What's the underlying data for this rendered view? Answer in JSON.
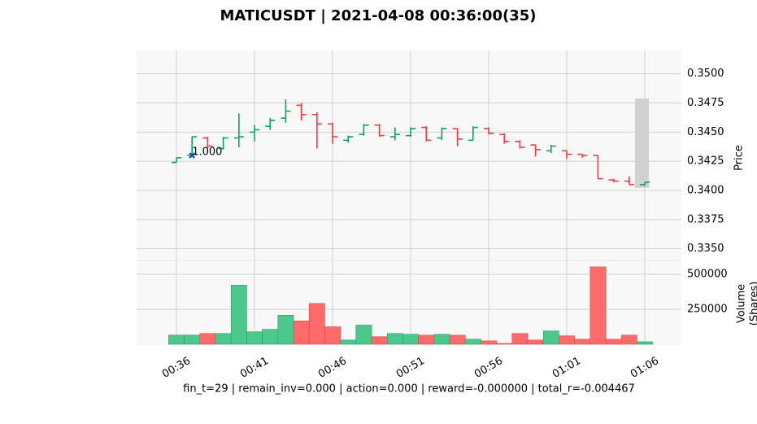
{
  "chart_data": {
    "type": "ohlc",
    "title": "MATICUSDT | 2021-04-08 00:36:00(35)",
    "footer": "fin_t=29 | remain_inv=0.000 | action=0.000 | reward=-0.000000 | total_r=-0.004467",
    "ylabel": "Price",
    "volume_ylabel": [
      "Volume",
      "(Shares)"
    ],
    "categories": [
      "00:36",
      null,
      null,
      null,
      null,
      "00:41",
      null,
      null,
      null,
      null,
      "00:46",
      null,
      null,
      null,
      null,
      "00:51",
      null,
      null,
      null,
      null,
      "00:56",
      null,
      null,
      null,
      null,
      "01:01",
      null,
      null,
      null,
      null,
      "01:06"
    ],
    "open": [
      0.3424,
      0.343,
      0.3445,
      0.3436,
      0.3445,
      0.345,
      0.3455,
      0.3462,
      0.3473,
      0.3465,
      0.3457,
      0.3443,
      0.3448,
      0.3456,
      0.3446,
      0.3447,
      0.3454,
      0.3445,
      0.3453,
      0.3443,
      0.3453,
      0.3448,
      0.3442,
      0.3439,
      0.3434,
      0.3434,
      0.3431,
      0.343,
      0.3409,
      0.3408,
      0.3405
    ],
    "high": [
      0.3428,
      0.3446,
      0.3446,
      0.3446,
      0.3466,
      0.3456,
      0.3462,
      0.3478,
      0.3475,
      0.3467,
      0.3458,
      0.3447,
      0.3457,
      0.3457,
      0.3454,
      0.3454,
      0.3455,
      0.3454,
      0.3453,
      0.3455,
      0.3454,
      0.3449,
      0.3443,
      0.3439,
      0.3439,
      0.3434,
      0.3431,
      0.343,
      0.341,
      0.3412,
      0.3407
    ],
    "low": [
      0.3424,
      0.343,
      0.3436,
      0.3435,
      0.3437,
      0.3442,
      0.3452,
      0.3458,
      0.346,
      0.3436,
      0.344,
      0.3441,
      0.3447,
      0.3446,
      0.3443,
      0.3446,
      0.3442,
      0.3443,
      0.3438,
      0.3443,
      0.3448,
      0.344,
      0.3436,
      0.3429,
      0.3432,
      0.3427,
      0.3428,
      0.341,
      0.3407,
      0.3405,
      0.3404
    ],
    "close": [
      0.3428,
      0.3446,
      0.3438,
      0.3445,
      0.3446,
      0.3452,
      0.346,
      0.3468,
      0.3465,
      0.3457,
      0.3446,
      0.3446,
      0.3456,
      0.3447,
      0.3448,
      0.3453,
      0.3443,
      0.3453,
      0.3444,
      0.3454,
      0.3449,
      0.3442,
      0.3437,
      0.3435,
      0.3438,
      0.3431,
      0.343,
      0.341,
      0.3408,
      0.3405,
      0.3407
    ],
    "volume": [
      65000,
      65000,
      77000,
      77000,
      423000,
      89000,
      107000,
      208000,
      167000,
      292000,
      125000,
      30000,
      137000,
      54000,
      77000,
      71000,
      65000,
      71000,
      65000,
      36000,
      24000,
      6000,
      77000,
      30000,
      95000,
      60000,
      36000,
      554000,
      36000,
      65000,
      18000
    ],
    "ylim": [
      0.334,
      0.352
    ],
    "yticks": [
      {
        "value": 0.335,
        "label": "0.3350"
      },
      0.3375,
      {
        "value": 0.34,
        "label": "0.3400"
      },
      0.3425,
      {
        "value": 0.345,
        "label": "0.3450"
      },
      0.3475,
      {
        "value": 0.35,
        "label": "0.3500"
      }
    ],
    "volume_ylim": [
      0,
      600000
    ],
    "volume_yticks": [
      250000,
      500000
    ],
    "marker": {
      "label": "1.000",
      "index": 1,
      "price": 0.343,
      "color": "#1f3fbf"
    },
    "up_color": "#0aa35c",
    "down_color": "#f23a3f",
    "volume_up_color": "#4cc88c",
    "volume_down_color": "#ff6b6b",
    "grid": true
  }
}
